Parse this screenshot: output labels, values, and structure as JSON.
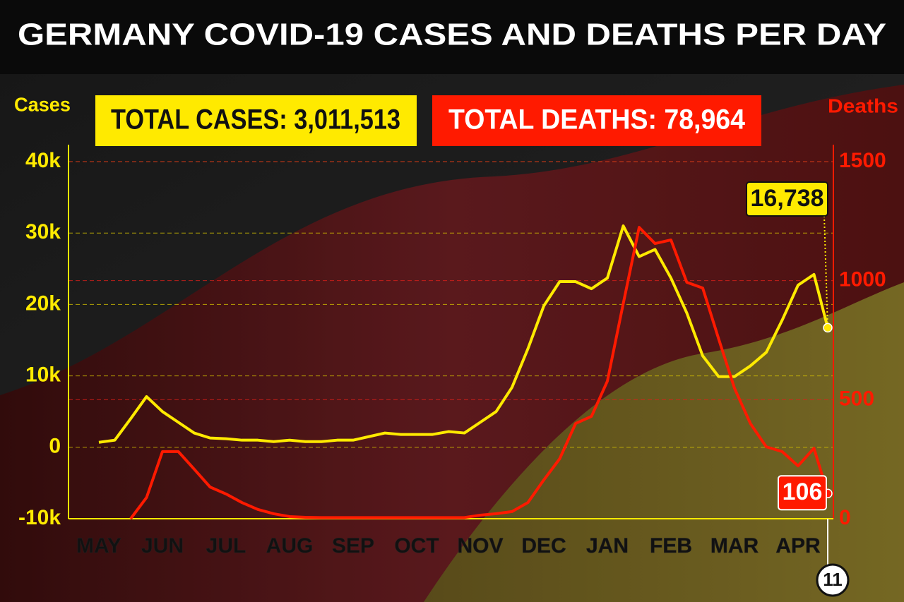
{
  "chart_data": {
    "type": "line",
    "title": "GERMANY COVID-19 CASES AND DEATHS PER DAY",
    "annotations": [
      "TOTAL CASES: 3,011,513",
      "TOTAL DEATHS: 78,964"
    ],
    "ylabel": "Cases",
    "y2label": "Deaths",
    "categories": [
      "MAY",
      null,
      null,
      null,
      "JUN",
      null,
      null,
      null,
      "JUL",
      null,
      null,
      null,
      "AUG",
      null,
      null,
      null,
      "SEP",
      null,
      null,
      null,
      "OCT",
      null,
      null,
      null,
      "NOV",
      null,
      null,
      null,
      "DEC",
      null,
      null,
      null,
      "JAN",
      null,
      null,
      null,
      "FEB",
      null,
      null,
      null,
      "MAR",
      null,
      null,
      null,
      "APR",
      null,
      "11"
    ],
    "ylim": [
      -10000,
      40000
    ],
    "yticks": [
      {
        "value": -10000,
        "label": "-10k"
      },
      0,
      {
        "value": 10000,
        "label": "10k"
      },
      {
        "value": 20000,
        "label": "20k"
      },
      {
        "value": 30000,
        "label": "30k"
      },
      {
        "value": 40000,
        "label": "40k"
      }
    ],
    "y2lim": [
      0,
      1500
    ],
    "y2ticks": [
      0,
      500,
      1000,
      1500
    ],
    "grid": true,
    "series": [
      {
        "name": "Cases",
        "color": "#ffea00",
        "values": [
          700,
          1000,
          4000,
          7100,
          5000,
          3500,
          2000,
          1300,
          1200,
          1000,
          1000,
          800,
          1000,
          800,
          800,
          1000,
          1000,
          1500,
          2000,
          1800,
          1800,
          1800,
          2200,
          2000,
          3500,
          5000,
          8400,
          13800,
          19800,
          23200,
          23200,
          22200,
          23700,
          31000,
          26700,
          27700,
          23700,
          18800,
          12800,
          9900,
          9900,
          11400,
          13300,
          17800,
          22700,
          24200,
          16738
        ],
        "value_labels": [
          null,
          null,
          null,
          null,
          null,
          null,
          null,
          null,
          null,
          null,
          null,
          null,
          null,
          null,
          null,
          null,
          null,
          null,
          null,
          null,
          null,
          null,
          null,
          null,
          null,
          null,
          null,
          null,
          null,
          null,
          null,
          null,
          null,
          null,
          null,
          null,
          null,
          null,
          null,
          null,
          null,
          null,
          null,
          null,
          null,
          null,
          "16,738"
        ]
      },
      {
        "name": "Deaths",
        "color": "#ff1a00",
        "axis": "y2",
        "values": [
          null,
          null,
          0,
          89,
          282,
          282,
          208,
          133,
          104,
          68,
          39,
          21,
          9,
          6,
          5,
          5,
          5,
          5,
          5,
          5,
          5,
          5,
          5,
          5,
          15,
          21,
          30,
          68,
          163,
          252,
          400,
          430,
          578,
          904,
          1224,
          1156,
          1171,
          993,
          969,
          756,
          548,
          400,
          302,
          282,
          222,
          296,
          106
        ],
        "value_labels": [
          null,
          null,
          null,
          null,
          null,
          null,
          null,
          null,
          null,
          null,
          null,
          null,
          null,
          null,
          null,
          null,
          null,
          null,
          null,
          null,
          null,
          null,
          null,
          null,
          null,
          null,
          null,
          null,
          null,
          null,
          null,
          null,
          null,
          null,
          null,
          null,
          null,
          null,
          null,
          null,
          null,
          null,
          null,
          null,
          null,
          null,
          "106"
        ]
      }
    ]
  }
}
